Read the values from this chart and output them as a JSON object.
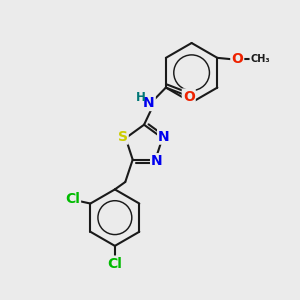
{
  "bg_color": "#ebebeb",
  "bond_color": "#1a1a1a",
  "bond_width": 1.5,
  "atom_colors": {
    "N": "#0000ee",
    "O": "#ee2200",
    "S": "#cccc00",
    "Cl": "#00bb00",
    "H_label": "#007777",
    "C": "#1a1a1a"
  },
  "font_size_atom": 10,
  "font_size_small": 8
}
